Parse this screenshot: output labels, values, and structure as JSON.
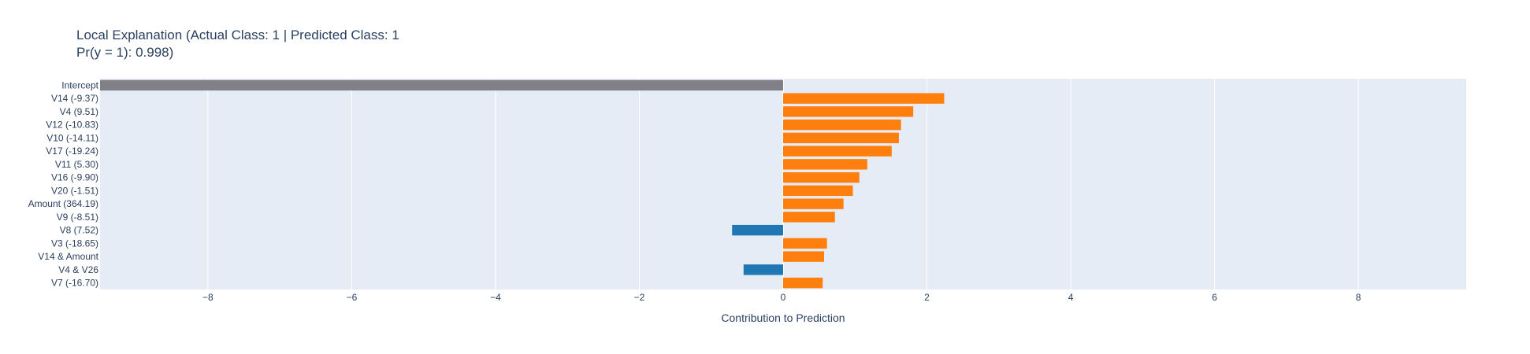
{
  "chart_data": {
    "type": "bar",
    "orientation": "horizontal",
    "title_line1": "Local Explanation (Actual Class: 1 | Predicted Class: 1",
    "title_line2": "Pr(y = 1): 0.998)",
    "xlabel": "Contribution to Prediction",
    "ylabel": "",
    "xlim": [
      -9.5,
      9.5
    ],
    "xticks": [
      -8,
      -6,
      -4,
      -2,
      0,
      2,
      4,
      6,
      8
    ],
    "xtick_labels": [
      "−8",
      "−6",
      "−4",
      "−2",
      "0",
      "2",
      "4",
      "6",
      "8"
    ],
    "grid": true,
    "categories": [
      "Intercept",
      "V14 (-9.37)",
      "V4 (9.51)",
      "V12 (-10.83)",
      "V10 (-14.11)",
      "V17 (-19.24)",
      "V11 (5.30)",
      "V16 (-9.90)",
      "V20 (-1.51)",
      "Amount (364.19)",
      "V9 (-8.51)",
      "V8 (7.52)",
      "V3 (-18.65)",
      "V14 & Amount",
      "V4 & V26",
      "V7 (-16.70)"
    ],
    "values": [
      -9.5,
      2.24,
      1.81,
      1.64,
      1.61,
      1.51,
      1.17,
      1.06,
      0.97,
      0.84,
      0.72,
      -0.71,
      0.61,
      0.57,
      -0.55,
      0.55
    ],
    "colors": {
      "intercept": "#808086",
      "positive": "#ff7f0e",
      "negative": "#1f77b4",
      "plot_bg": "#e5ecf6",
      "grid": "#ffffff",
      "text": "#2a3f5f"
    }
  }
}
